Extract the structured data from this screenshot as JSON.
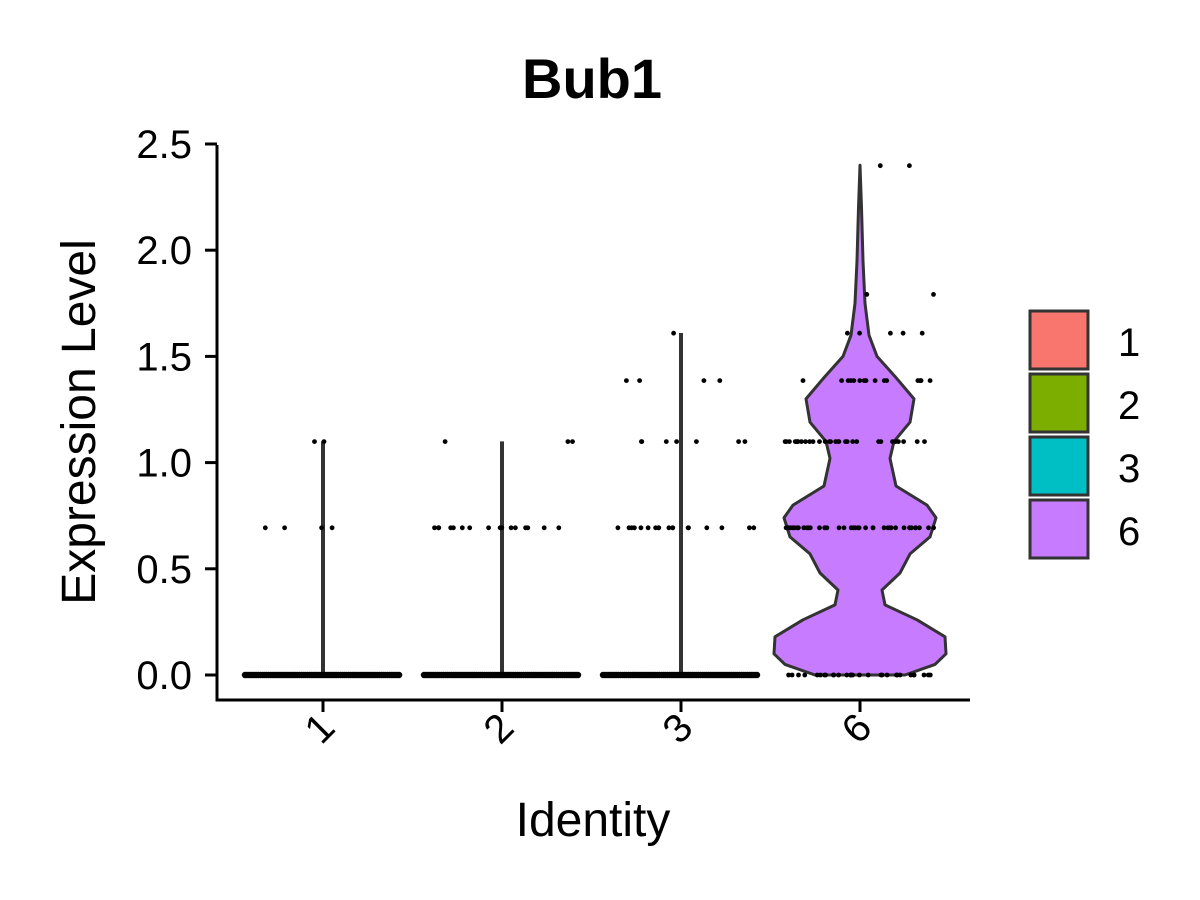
{
  "chart_data": {
    "type": "violin",
    "title": "Bub1",
    "xlabel": "Identity",
    "ylabel": "Expression Level",
    "ylim": [
      0,
      2.5
    ],
    "yticks": [
      "0.0",
      "0.5",
      "1.0",
      "1.5",
      "2.0",
      "2.5"
    ],
    "categories": [
      "1",
      "2",
      "3",
      "6"
    ],
    "grid": false,
    "legend_position": "right",
    "legend": [
      {
        "label": "1",
        "color": "#F8766D"
      },
      {
        "label": "2",
        "color": "#7CAE00"
      },
      {
        "label": "3",
        "color": "#00BFC4"
      },
      {
        "label": "6",
        "color": "#C77CFF"
      }
    ],
    "series": [
      {
        "category": "1",
        "color": "#F8766D",
        "max": 1.1,
        "points": [
          {
            "y": 0.693,
            "count": 4
          },
          {
            "y": 1.099,
            "count": 2
          }
        ]
      },
      {
        "category": "2",
        "color": "#7CAE00",
        "max": 1.1,
        "points": [
          {
            "y": 0.693,
            "count": 16
          },
          {
            "y": 1.099,
            "count": 3
          }
        ]
      },
      {
        "category": "3",
        "color": "#00BFC4",
        "max": 1.61,
        "points": [
          {
            "y": 0.693,
            "count": 18
          },
          {
            "y": 1.099,
            "count": 7
          },
          {
            "y": 1.386,
            "count": 4
          },
          {
            "y": 1.609,
            "count": 1
          }
        ]
      },
      {
        "category": "6",
        "color": "#C77CFF",
        "max": 2.4,
        "points": [
          {
            "y": 0.0,
            "count": 30
          },
          {
            "y": 0.693,
            "count": 40
          },
          {
            "y": 1.099,
            "count": 30
          },
          {
            "y": 1.386,
            "count": 16
          },
          {
            "y": 1.609,
            "count": 5
          },
          {
            "y": 1.792,
            "count": 2
          },
          {
            "y": 2.398,
            "count": 2
          }
        ]
      }
    ]
  }
}
